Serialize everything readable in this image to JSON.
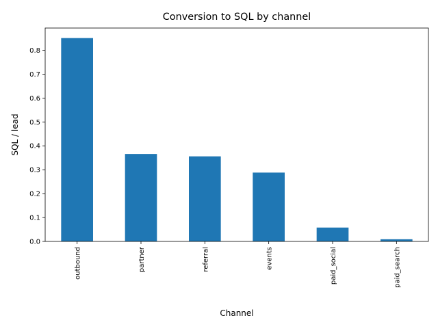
{
  "chart_data": {
    "type": "bar",
    "title": "Conversion to SQL by channel",
    "xlabel": "Channel",
    "ylabel": "SQL / lead",
    "categories": [
      "outbound",
      "partner",
      "referral",
      "events",
      "paid_social",
      "paid_search"
    ],
    "values": [
      0.851,
      0.366,
      0.356,
      0.288,
      0.058,
      0.009
    ],
    "ylim": [
      0,
      0.893
    ],
    "yticks": [
      0.0,
      0.1,
      0.2,
      0.3,
      0.4,
      0.5,
      0.6,
      0.7,
      0.8
    ],
    "ytick_labels": [
      "0.0",
      "0.1",
      "0.2",
      "0.3",
      "0.4",
      "0.5",
      "0.6",
      "0.7",
      "0.8"
    ],
    "grid": false,
    "legend": "none",
    "colors": {
      "bar": "#1f77b4",
      "axis": "#000000"
    }
  }
}
